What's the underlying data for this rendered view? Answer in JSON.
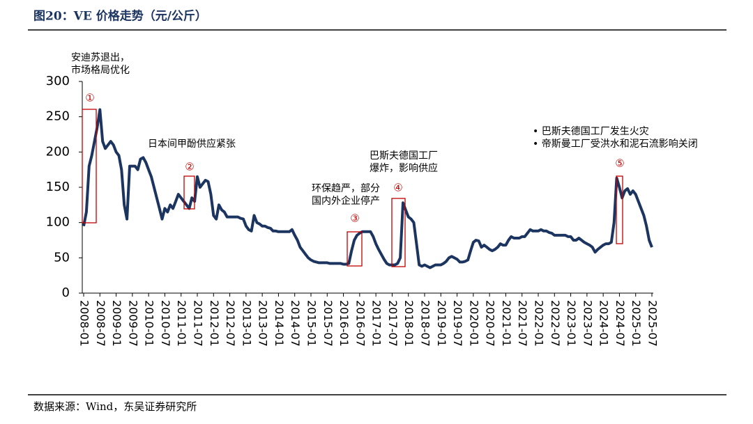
{
  "chart_data": {
    "type": "line",
    "title": "图20：VE 价格走势（元/公斤）",
    "source": "数据来源：Wind，东吴证券研究所",
    "x": [
      "2008-01",
      "2008-02",
      "2008-03",
      "2008-04",
      "2008-05",
      "2008-06",
      "2008-07",
      "2008-08",
      "2008-09",
      "2008-10",
      "2008-11",
      "2008-12",
      "2009-01",
      "2009-02",
      "2009-03",
      "2009-04",
      "2009-05",
      "2009-06",
      "2009-07",
      "2009-08",
      "2009-09",
      "2009-10",
      "2009-11",
      "2009-12",
      "2010-01",
      "2010-02",
      "2010-03",
      "2010-04",
      "2010-05",
      "2010-06",
      "2010-07",
      "2010-08",
      "2010-09",
      "2010-10",
      "2010-11",
      "2010-12",
      "2011-01",
      "2011-02",
      "2011-03",
      "2011-04",
      "2011-05",
      "2011-06",
      "2011-07",
      "2011-08",
      "2011-09",
      "2011-10",
      "2011-11",
      "2011-12",
      "2012-01",
      "2012-02",
      "2012-03",
      "2012-04",
      "2012-05",
      "2012-06",
      "2012-07",
      "2012-08",
      "2012-09",
      "2012-10",
      "2012-11",
      "2012-12",
      "2013-01",
      "2013-02",
      "2013-03",
      "2013-04",
      "2013-05",
      "2013-06",
      "2013-07",
      "2013-08",
      "2013-09",
      "2013-10",
      "2013-11",
      "2013-12",
      "2014-01",
      "2014-02",
      "2014-03",
      "2014-04",
      "2014-05",
      "2014-06",
      "2014-07",
      "2014-08",
      "2014-09",
      "2014-10",
      "2014-11",
      "2014-12",
      "2015-01",
      "2015-02",
      "2015-03",
      "2015-04",
      "2015-05",
      "2015-06",
      "2015-07",
      "2015-08",
      "2015-09",
      "2015-10",
      "2015-11",
      "2015-12",
      "2016-01",
      "2016-02",
      "2016-03",
      "2016-04",
      "2016-05",
      "2016-06",
      "2016-07",
      "2016-08",
      "2016-09",
      "2016-10",
      "2016-11",
      "2016-12",
      "2017-01",
      "2017-02",
      "2017-03",
      "2017-04",
      "2017-05",
      "2017-06",
      "2017-07",
      "2017-08",
      "2017-09",
      "2017-10",
      "2017-11",
      "2017-12",
      "2018-01",
      "2018-02",
      "2018-03",
      "2018-04",
      "2018-05",
      "2018-06",
      "2018-07",
      "2018-08",
      "2018-09",
      "2018-10",
      "2018-11",
      "2018-12",
      "2019-01",
      "2019-02",
      "2019-03",
      "2019-04",
      "2019-05",
      "2019-06",
      "2019-07",
      "2019-08",
      "2019-09",
      "2019-10",
      "2019-11",
      "2019-12",
      "2020-01",
      "2020-02",
      "2020-03",
      "2020-04",
      "2020-05",
      "2020-06",
      "2020-07",
      "2020-08",
      "2020-09",
      "2020-10",
      "2020-11",
      "2020-12",
      "2021-01",
      "2021-02",
      "2021-03",
      "2021-04",
      "2021-05",
      "2021-06",
      "2021-07",
      "2021-08",
      "2021-09",
      "2021-10",
      "2021-11",
      "2021-12",
      "2022-01",
      "2022-02",
      "2022-03",
      "2022-04",
      "2022-05",
      "2022-06",
      "2022-07",
      "2022-08",
      "2022-09",
      "2022-10",
      "2022-11",
      "2022-12",
      "2023-01",
      "2023-02",
      "2023-03",
      "2023-04",
      "2023-05",
      "2023-06",
      "2023-07",
      "2023-08",
      "2023-09",
      "2023-10",
      "2023-11",
      "2023-12",
      "2024-01",
      "2024-02",
      "2024-03",
      "2024-04",
      "2024-05",
      "2024-06",
      "2024-07",
      "2024-08",
      "2024-09",
      "2024-10",
      "2024-11",
      "2024-12",
      "2025-01",
      "2025-02",
      "2025-03",
      "2025-04",
      "2025-05",
      "2025-06",
      "2025-07"
    ],
    "series": [
      {
        "color": "#1c3560",
        "values": [
          95,
          115,
          180,
          195,
          215,
          235,
          260,
          215,
          205,
          210,
          215,
          210,
          200,
          195,
          175,
          125,
          105,
          180,
          180,
          180,
          175,
          190,
          192,
          185,
          175,
          165,
          150,
          135,
          120,
          105,
          120,
          115,
          125,
          120,
          130,
          140,
          135,
          130,
          125,
          120,
          135,
          130,
          165,
          150,
          155,
          160,
          158,
          140,
          110,
          105,
          125,
          118,
          115,
          108,
          108,
          108,
          108,
          108,
          106,
          105,
          95,
          90,
          88,
          110,
          100,
          98,
          95,
          95,
          93,
          92,
          88,
          88,
          87,
          87,
          87,
          87,
          87,
          90,
          82,
          75,
          65,
          60,
          55,
          50,
          47,
          45,
          44,
          43,
          43,
          43,
          43,
          42,
          42,
          42,
          42,
          42,
          41,
          41,
          42,
          60,
          75,
          82,
          85,
          87,
          87,
          87,
          87,
          80,
          70,
          62,
          55,
          48,
          42,
          40,
          40,
          40,
          42,
          50,
          128,
          118,
          108,
          105,
          100,
          70,
          40,
          38,
          40,
          38,
          36,
          38,
          40,
          40,
          40,
          42,
          45,
          50,
          52,
          50,
          48,
          44,
          44,
          45,
          47,
          60,
          72,
          75,
          74,
          65,
          68,
          65,
          62,
          60,
          62,
          65,
          70,
          68,
          68,
          75,
          80,
          78,
          78,
          78,
          80,
          80,
          85,
          90,
          88,
          88,
          88,
          90,
          88,
          88,
          86,
          85,
          82,
          82,
          82,
          82,
          82,
          80,
          80,
          75,
          75,
          78,
          75,
          72,
          70,
          68,
          65,
          58,
          62,
          65,
          68,
          70,
          70,
          72,
          100,
          163,
          150,
          135,
          145,
          148,
          140,
          145,
          140,
          130,
          120,
          110,
          95,
          75,
          65
        ]
      }
    ],
    "ylim": [
      0,
      300
    ],
    "yticks": [
      0,
      50,
      100,
      150,
      200,
      250,
      300
    ],
    "xticks": [
      "2008-01",
      "2008-07",
      "2009-01",
      "2009-07",
      "2010-01",
      "2010-07",
      "2011-01",
      "2011-07",
      "2012-01",
      "2012-07",
      "2013-01",
      "2013-07",
      "2014-01",
      "2014-07",
      "2015-01",
      "2015-07",
      "2016-01",
      "2016-07",
      "2017-01",
      "2017-07",
      "2018-01",
      "2018-07",
      "2019-01",
      "2019-07",
      "2020-01",
      "2020-07",
      "2021-01",
      "2021-07",
      "2022-01",
      "2022-07",
      "2023-01",
      "2023-07",
      "2024-01",
      "2024-07",
      "2025-01",
      "2025-07"
    ],
    "annotations": [
      {
        "marker": "①",
        "lines": [
          "安迪苏退出，",
          "市场格局优化"
        ]
      },
      {
        "marker": "②",
        "lines": [
          "日本间甲酚供应紧张"
        ]
      },
      {
        "marker": "③",
        "lines": [
          "环保趋严，部分",
          "国内外企业停产"
        ]
      },
      {
        "marker": "④",
        "lines": [
          "巴斯夫德国工厂",
          "爆炸，影响供应"
        ]
      },
      {
        "marker": "⑤",
        "lines": [
          "•  巴斯夫德国工厂发生火灾",
          "•  帝斯曼工厂受洪水和泥石流影响关闭"
        ]
      }
    ]
  }
}
